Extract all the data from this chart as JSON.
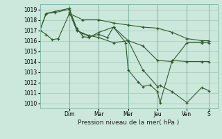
{
  "xlabel": "Pression niveau de la mer( hPa )",
  "bg_color": "#cce8dc",
  "grid_color": "#aaccbb",
  "line_color": "#2d5a2d",
  "ylim": [
    1009.5,
    1019.5
  ],
  "yticks": [
    1010,
    1011,
    1012,
    1013,
    1014,
    1015,
    1016,
    1017,
    1018,
    1019
  ],
  "xlim": [
    0,
    14.5
  ],
  "day_labels": [
    "Dim",
    "Mar",
    "Mer",
    "Jeu",
    "Ven",
    "S"
  ],
  "day_positions": [
    2.4,
    4.8,
    7.2,
    9.6,
    12.0,
    13.8
  ],
  "series": [
    {
      "x": [
        0,
        0.5,
        1.0,
        1.5,
        2.4,
        3.5,
        4.8,
        6.0,
        7.2,
        8.4,
        9.6,
        10.8,
        12.0,
        13.2,
        13.8
      ],
      "y": [
        1017.0,
        1016.6,
        1016.1,
        1016.2,
        1018.6,
        1018.0,
        1018.0,
        1017.7,
        1017.5,
        1017.3,
        1017.2,
        1016.8,
        1016.2,
        1016.0,
        1016.0
      ]
    },
    {
      "x": [
        0,
        0.5,
        1.2,
        2.4,
        3.0,
        3.5,
        4.0,
        4.8,
        6.0,
        7.2,
        8.4,
        9.6,
        10.8,
        12.0,
        13.2,
        13.8
      ],
      "y": [
        1017.0,
        1018.6,
        1018.8,
        1019.1,
        1017.0,
        1016.7,
        1016.5,
        1016.3,
        1015.8,
        1016.0,
        1015.5,
        1014.1,
        1014.0,
        1015.8,
        1015.8,
        1015.8
      ]
    },
    {
      "x": [
        0,
        0.5,
        1.2,
        2.4,
        3.0,
        3.5,
        4.0,
        4.8,
        6.0,
        7.2,
        8.4,
        9.6,
        9.8,
        10.8,
        12.0,
        13.2,
        13.8
      ],
      "y": [
        1017.0,
        1018.6,
        1018.7,
        1019.0,
        1017.2,
        1016.4,
        1016.3,
        1016.8,
        1017.3,
        1016.0,
        1013.2,
        1011.6,
        1011.7,
        1011.1,
        1010.05,
        1011.5,
        1011.2
      ]
    },
    {
      "x": [
        2.4,
        3.0,
        4.0,
        4.8,
        5.5,
        6.0,
        7.0,
        7.2,
        8.0,
        8.4,
        9.0,
        9.6,
        9.8,
        10.8,
        12.0,
        13.2,
        13.8
      ],
      "y": [
        1018.7,
        1017.0,
        1016.4,
        1016.6,
        1016.3,
        1017.3,
        1015.8,
        1013.2,
        1012.05,
        1011.6,
        1011.75,
        1011.1,
        1010.05,
        1014.1,
        1014.0,
        1014.0,
        1014.0
      ]
    }
  ]
}
